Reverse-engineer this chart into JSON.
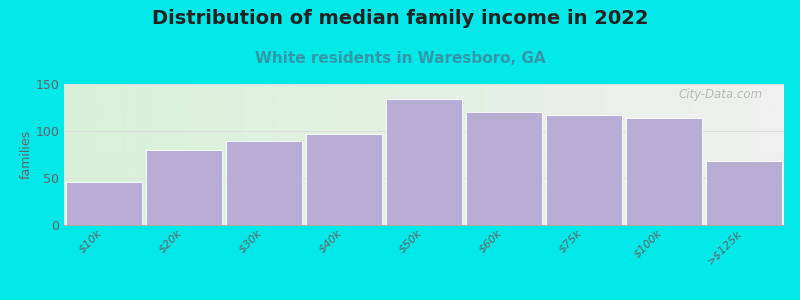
{
  "title": "Distribution of median family income in 2022",
  "subtitle": "White residents in Waresboro, GA",
  "categories": [
    "$10k",
    "$20k",
    "$30k",
    "$40k",
    "$50k",
    "$60k",
    "$75k",
    "$100k",
    ">$125k"
  ],
  "values": [
    46,
    80,
    89,
    97,
    134,
    120,
    117,
    114,
    68
  ],
  "bar_color": "#b8aed4",
  "bar_edge_color": "#ffffff",
  "background_color": "#00e8e8",
  "plot_bg_left": "#d8f0d8",
  "plot_bg_right": "#f0f0f0",
  "title_fontsize": 14,
  "title_color": "#222222",
  "subtitle_fontsize": 11,
  "subtitle_color": "#3399aa",
  "ylabel": "families",
  "ylabel_fontsize": 9,
  "ylim": [
    0,
    150
  ],
  "yticks": [
    0,
    50,
    100,
    150
  ],
  "tick_color": "#666666",
  "tick_fontsize": 9,
  "xtick_fontsize": 8,
  "watermark": "City-Data.com",
  "watermark_color": "#aaaaaa",
  "grid_color": "#dddddd"
}
